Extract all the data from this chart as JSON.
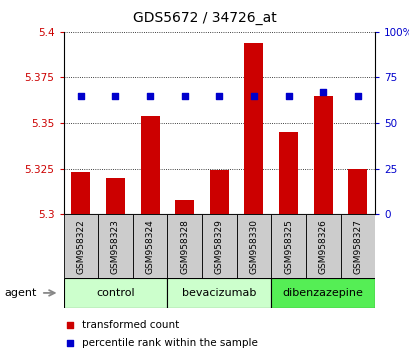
{
  "title": "GDS5672 / 34726_at",
  "samples": [
    "GSM958322",
    "GSM958323",
    "GSM958324",
    "GSM958328",
    "GSM958329",
    "GSM958330",
    "GSM958325",
    "GSM958326",
    "GSM958327"
  ],
  "bar_values": [
    5.323,
    5.32,
    5.354,
    5.308,
    5.324,
    5.394,
    5.345,
    5.365,
    5.325
  ],
  "percentile_values": [
    65,
    65,
    65,
    65,
    65,
    65,
    65,
    67,
    65
  ],
  "ylim_left": [
    5.3,
    5.4
  ],
  "ylim_right": [
    0,
    100
  ],
  "yticks_left": [
    5.3,
    5.325,
    5.35,
    5.375,
    5.4
  ],
  "ytick_labels_left": [
    "5.3",
    "5.325",
    "5.35",
    "5.375",
    "5.4"
  ],
  "yticks_right": [
    0,
    25,
    50,
    75,
    100
  ],
  "ytick_labels_right": [
    "0",
    "25",
    "50",
    "75",
    "100%"
  ],
  "bar_color": "#cc0000",
  "dot_color": "#0000cc",
  "bar_bottom": 5.3,
  "groups": [
    {
      "label": "control",
      "indices": [
        0,
        1,
        2
      ],
      "color": "#ccffcc"
    },
    {
      "label": "bevacizumab",
      "indices": [
        3,
        4,
        5
      ],
      "color": "#ccffcc"
    },
    {
      "label": "dibenzazepine",
      "indices": [
        6,
        7,
        8
      ],
      "color": "#55ee55"
    }
  ],
  "agent_label": "agent",
  "legend_items": [
    {
      "label": "transformed count",
      "color": "#cc0000"
    },
    {
      "label": "percentile rank within the sample",
      "color": "#0000cc"
    }
  ],
  "grid_color": "black",
  "sample_box_color": "#cccccc",
  "title_fontsize": 10,
  "tick_fontsize": 7.5,
  "sample_fontsize": 6.5,
  "group_fontsize": 8,
  "legend_fontsize": 7.5,
  "agent_fontsize": 8
}
